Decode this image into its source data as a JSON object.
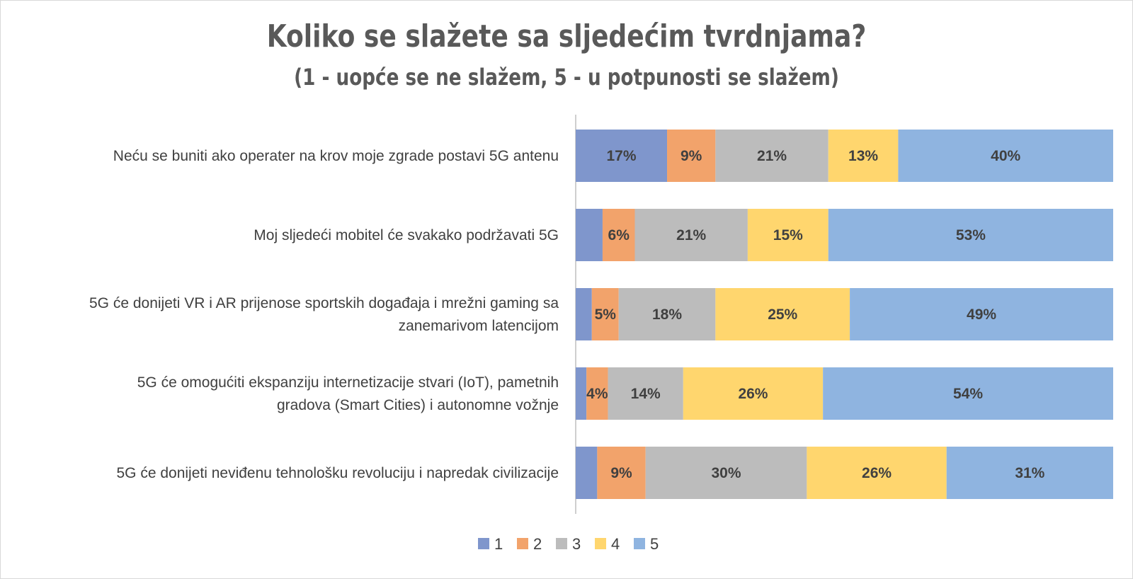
{
  "chart_data": {
    "type": "bar",
    "orientation": "horizontal",
    "stacked": true,
    "normalized": true,
    "title": "Koliko se slažete sa sljedećim tvrdnjama?",
    "subtitle": "(1 - uopće se ne slažem, 5 - u potpunosti se slažem)",
    "categories": [
      "Neću se buniti ako operater na krov moje zgrade postavi 5G antenu",
      "Moj sljedeći mobitel će svakako podržavati 5G",
      "5G će donijeti VR i AR prijenose sportskih događaja i mrežni gaming sa zanemarivom latencijom",
      "5G će omogućiti ekspanziju internetizacije stvari (IoT), pametnih gradova (Smart Cities) i autonomne vožnje",
      "5G će donijeti neviđenu tehnološku revoluciju i napredak civilizacije"
    ],
    "category_lines": [
      [
        "Neću se buniti ako operater na krov moje zgrade postavi 5G antenu"
      ],
      [
        "Moj sljedeći mobitel će svakako podržavati 5G"
      ],
      [
        "5G će donijeti VR i AR prijenose sportskih događaja i mrežni gaming sa",
        "zanemarivom latencijom"
      ],
      [
        "5G će omogućiti ekspanziju internetizacije stvari (IoT), pametnih",
        "gradova (Smart Cities) i autonomne vožnje"
      ],
      [
        "5G će donijeti neviđenu tehnološku revoluciju i napredak civilizacije"
      ]
    ],
    "series": [
      {
        "name": "1",
        "color": "#7f96cc",
        "values": [
          17,
          5,
          3,
          2,
          4
        ],
        "labels": [
          "17%",
          "",
          "",
          "",
          ""
        ]
      },
      {
        "name": "2",
        "color": "#f2a36b",
        "values": [
          9,
          6,
          5,
          4,
          9
        ],
        "labels": [
          "9%",
          "6%",
          "5%",
          "4%",
          "9%"
        ]
      },
      {
        "name": "3",
        "color": "#bcbcbc",
        "values": [
          21,
          21,
          18,
          14,
          30
        ],
        "labels": [
          "21%",
          "21%",
          "18%",
          "14%",
          "30%"
        ]
      },
      {
        "name": "4",
        "color": "#ffd66e",
        "values": [
          13,
          15,
          25,
          26,
          26
        ],
        "labels": [
          "13%",
          "15%",
          "25%",
          "26%",
          "26%"
        ]
      },
      {
        "name": "5",
        "color": "#8fb4e0",
        "values": [
          40,
          53,
          49,
          54,
          31
        ],
        "labels": [
          "40%",
          "53%",
          "49%",
          "54%",
          "31%"
        ]
      }
    ],
    "xlim": [
      0,
      100
    ],
    "grid": false,
    "legend_position": "bottom"
  }
}
